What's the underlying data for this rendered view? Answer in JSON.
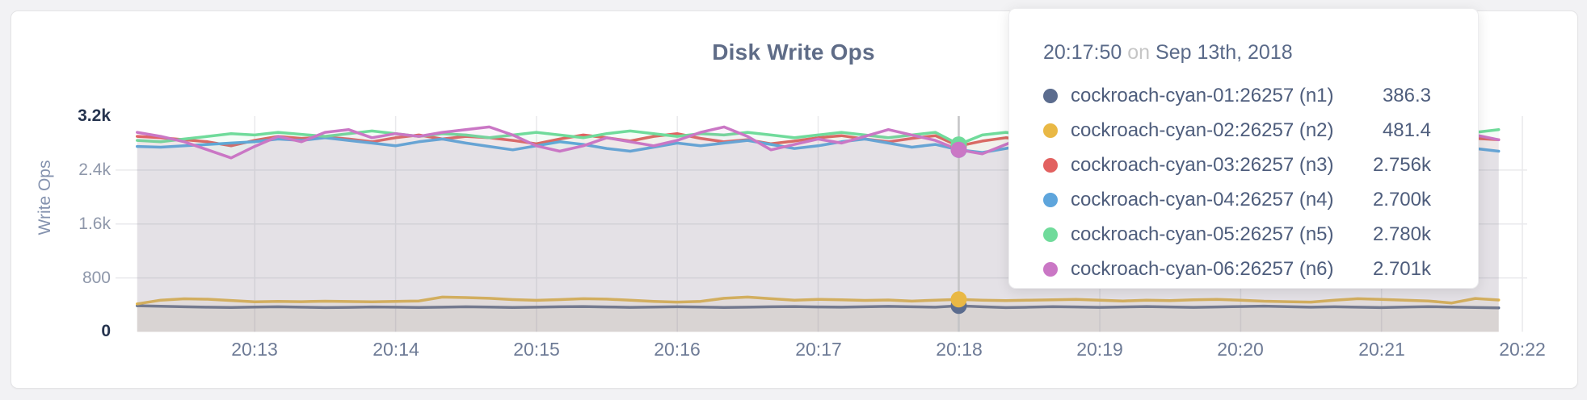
{
  "card": {
    "title": "Disk Write Ops"
  },
  "colors": {
    "accent_text": "#5f6c87",
    "grid": "#e9e9ec",
    "hover_line": "#c4c4c6",
    "tick_mid": "#8e97aa",
    "tick_endpoint": "#26344f"
  },
  "chart_data": {
    "type": "line",
    "title": "Disk Write Ops",
    "xlabel": "",
    "ylabel": "Write Ops",
    "ylim": [
      0,
      3200
    ],
    "grid": true,
    "legend_position": "tooltip",
    "x_start": "20:12:10",
    "x_step_seconds": 10,
    "xticks": [
      "20:13",
      "20:14",
      "20:15",
      "20:16",
      "20:17",
      "20:18",
      "20:19",
      "20:20",
      "20:21",
      "20:22"
    ],
    "yticks": [
      {
        "label": "3.2k",
        "value": 3200
      },
      {
        "label": "2.4k",
        "value": 2400
      },
      {
        "label": "1.6k",
        "value": 1600
      },
      {
        "label": "800",
        "value": 800
      },
      {
        "label": "0",
        "value": 0
      }
    ],
    "hover": {
      "index": 35,
      "time": "20:17:50",
      "preposition": "on",
      "date": "Sep 13th, 2018"
    },
    "series": [
      {
        "name": "cockroach-cyan-01:26257 (n1)",
        "color": "#5b6c8e",
        "tooltip_value": "386.3",
        "values": [
          388,
          380,
          372,
          366,
          362,
          368,
          372,
          366,
          360,
          364,
          370,
          366,
          362,
          366,
          372,
          368,
          362,
          366,
          372,
          376,
          370,
          364,
          368,
          372,
          368,
          362,
          366,
          372,
          376,
          370,
          366,
          372,
          378,
          372,
          366,
          386,
          372,
          360,
          366,
          374,
          370,
          364,
          370,
          376,
          370,
          364,
          370,
          376,
          382,
          374,
          366,
          372,
          366,
          360,
          368,
          374,
          368,
          362,
          356
        ]
      },
      {
        "name": "cockroach-cyan-02:26257 (n2)",
        "color": "#e9b845",
        "tooltip_value": "481.4",
        "values": [
          415,
          470,
          490,
          485,
          465,
          445,
          452,
          448,
          455,
          450,
          446,
          452,
          458,
          515,
          508,
          498,
          478,
          468,
          478,
          492,
          486,
          470,
          452,
          442,
          452,
          498,
          515,
          492,
          470,
          482,
          476,
          466,
          472,
          456,
          470,
          481,
          470,
          464,
          470,
          476,
          482,
          470,
          458,
          470,
          464,
          476,
          482,
          470,
          455,
          448,
          442,
          470,
          492,
          482,
          470,
          458,
          428,
          495,
          472
        ]
      },
      {
        "name": "cockroach-cyan-03:26257 (n3)",
        "color": "#e26160",
        "tooltip_value": "2.756k",
        "values": [
          2900,
          2880,
          2850,
          2820,
          2760,
          2840,
          2900,
          2870,
          2890,
          2860,
          2820,
          2880,
          2920,
          2860,
          2900,
          2880,
          2840,
          2790,
          2860,
          2920,
          2880,
          2830,
          2900,
          2940,
          2870,
          2820,
          2850,
          2790,
          2830,
          2880,
          2910,
          2860,
          2820,
          2870,
          2910,
          2756,
          2830,
          2880,
          2840,
          2790,
          2850,
          2900,
          2860,
          2820,
          2870,
          2910,
          2850,
          2800,
          2860,
          2890,
          2840,
          2800,
          2850,
          2900,
          2950,
          2880,
          2820,
          2870,
          2850
        ]
      },
      {
        "name": "cockroach-cyan-04:26257 (n4)",
        "color": "#5ea5dc",
        "tooltip_value": "2.700k",
        "values": [
          2750,
          2740,
          2760,
          2780,
          2800,
          2820,
          2860,
          2840,
          2880,
          2840,
          2800,
          2760,
          2820,
          2860,
          2800,
          2750,
          2700,
          2760,
          2820,
          2780,
          2720,
          2680,
          2740,
          2800,
          2760,
          2800,
          2840,
          2780,
          2720,
          2760,
          2820,
          2860,
          2800,
          2740,
          2780,
          2700,
          2660,
          2720,
          2780,
          2820,
          2760,
          2700,
          2740,
          2800,
          2840,
          2780,
          2720,
          2760,
          2820,
          2780,
          2740,
          2790,
          2840,
          2800,
          2750,
          2700,
          2760,
          2720,
          2680
        ]
      },
      {
        "name": "cockroach-cyan-05:26257 (n5)",
        "color": "#70db9b",
        "tooltip_value": "2.780k",
        "values": [
          2840,
          2820,
          2860,
          2900,
          2940,
          2920,
          2960,
          2930,
          2900,
          2940,
          2980,
          2940,
          2900,
          2940,
          2920,
          2880,
          2920,
          2960,
          2920,
          2880,
          2940,
          2980,
          2940,
          2900,
          2940,
          2920,
          2960,
          2920,
          2880,
          2920,
          2960,
          2920,
          2880,
          2920,
          2960,
          2780,
          2920,
          2960,
          2920,
          2880,
          2940,
          2980,
          2940,
          2900,
          2940,
          2900,
          2860,
          2920,
          2960,
          2920,
          2880,
          2920,
          2960,
          2920,
          2880,
          2940,
          2980,
          2960,
          3000
        ]
      },
      {
        "name": "cockroach-cyan-06:26257 (n6)",
        "color": "#ca77c5",
        "tooltip_value": "2.701k",
        "values": [
          2960,
          2900,
          2820,
          2700,
          2580,
          2750,
          2900,
          2820,
          2960,
          3000,
          2880,
          2940,
          2900,
          2960,
          3000,
          3040,
          2920,
          2760,
          2680,
          2760,
          2880,
          2820,
          2760,
          2840,
          2960,
          3040,
          2900,
          2700,
          2780,
          2860,
          2800,
          2900,
          3000,
          2920,
          2840,
          2701,
          2640,
          2780,
          2920,
          2980,
          2900,
          2700,
          2620,
          2780,
          2940,
          2880,
          2820,
          2900,
          2980,
          2840,
          2680,
          2800,
          2940,
          3060,
          2960,
          2880,
          2800,
          2920,
          2850
        ]
      }
    ]
  }
}
